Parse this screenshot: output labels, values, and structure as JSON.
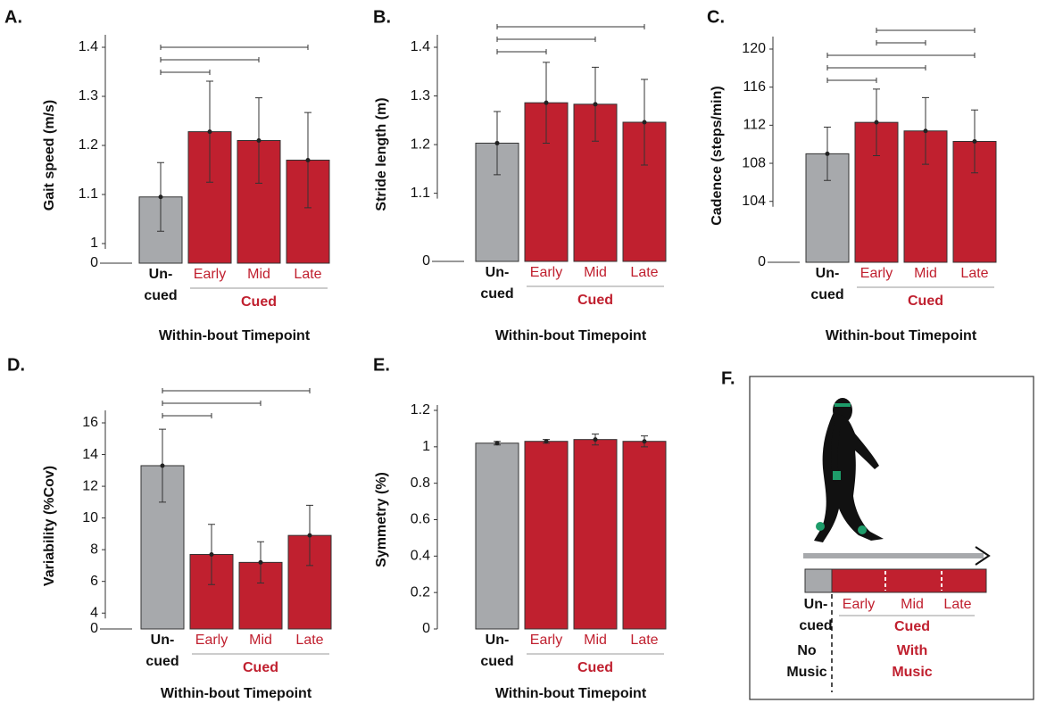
{
  "chart_data": [
    {
      "type": "bar",
      "panel": "A.",
      "ylabel": "Gait speed (m/s)",
      "xlabel": "Within-bout Timepoint",
      "categories": [
        "Un-\ncued",
        "Early",
        "Mid",
        "Late"
      ],
      "group_label": "Cued",
      "values": [
        1.095,
        1.228,
        1.21,
        1.17
      ],
      "errors": [
        0.07,
        0.103,
        0.087,
        0.097
      ],
      "colors": [
        "#a7a9ac",
        "#c0202f",
        "#c0202f",
        "#c0202f"
      ],
      "ylim": [
        0.96,
        1.4
      ],
      "yticks": [
        0,
        1,
        1.1,
        1.2,
        1.3,
        1.4
      ],
      "axis_break": true,
      "significant_pairs": [
        [
          0,
          1
        ],
        [
          0,
          2
        ],
        [
          0,
          3
        ]
      ]
    },
    {
      "type": "bar",
      "panel": "B.",
      "ylabel": "Stride length (m)",
      "xlabel": "Within-bout Timepoint",
      "categories": [
        "Un-\ncued",
        "Early",
        "Mid",
        "Late"
      ],
      "group_label": "Cued",
      "values": [
        1.203,
        1.286,
        1.283,
        1.246
      ],
      "errors": [
        0.065,
        0.083,
        0.076,
        0.088
      ],
      "colors": [
        "#a7a9ac",
        "#c0202f",
        "#c0202f",
        "#c0202f"
      ],
      "ylim": [
        0.96,
        1.4
      ],
      "yticks": [
        0,
        1.1,
        1.2,
        1.3,
        1.4
      ],
      "axis_break": true,
      "significant_pairs": [
        [
          0,
          1
        ],
        [
          0,
          2
        ],
        [
          0,
          3
        ]
      ]
    },
    {
      "type": "bar",
      "panel": "C.",
      "ylabel": "Cadence (steps/min)",
      "xlabel": "Within-bout Timepoint",
      "categories": [
        "Un-\ncued",
        "Early",
        "Mid",
        "Late"
      ],
      "group_label": "Cued",
      "values": [
        109,
        112.3,
        111.4,
        110.3
      ],
      "errors": [
        2.8,
        3.5,
        3.5,
        3.3
      ],
      "colors": [
        "#a7a9ac",
        "#c0202f",
        "#c0202f",
        "#c0202f"
      ],
      "ylim": [
        97.6,
        120
      ],
      "yticks": [
        0,
        104,
        108,
        112,
        116,
        120
      ],
      "axis_break": true,
      "significant_pairs": [
        [
          0,
          1
        ],
        [
          0,
          2
        ],
        [
          0,
          3
        ],
        [
          1,
          2
        ],
        [
          1,
          3
        ]
      ]
    },
    {
      "type": "bar",
      "panel": "D.",
      "ylabel": "Variability (%Cov)",
      "xlabel": "Within-bout Timepoint",
      "categories": [
        "Un-\ncued",
        "Early",
        "Mid",
        "Late"
      ],
      "group_label": "Cued",
      "values": [
        13.3,
        7.7,
        7.2,
        8.9
      ],
      "errors": [
        2.3,
        1.9,
        1.3,
        1.9
      ],
      "colors": [
        "#a7a9ac",
        "#c0202f",
        "#c0202f",
        "#c0202f"
      ],
      "ylim": [
        3,
        16
      ],
      "yticks": [
        0,
        4,
        6,
        8,
        10,
        12,
        14,
        16
      ],
      "axis_break": true,
      "significant_pairs": [
        [
          0,
          1
        ],
        [
          0,
          2
        ],
        [
          0,
          3
        ]
      ]
    },
    {
      "type": "bar",
      "panel": "E.",
      "ylabel": "Symmetry (%)",
      "xlabel": "Within-bout Timepoint",
      "categories": [
        "Un-\ncued",
        "Early",
        "Mid",
        "Late"
      ],
      "group_label": "Cued",
      "values": [
        1.02,
        1.03,
        1.04,
        1.03
      ],
      "errors": [
        0.01,
        0.01,
        0.03,
        0.03
      ],
      "colors": [
        "#a7a9ac",
        "#c0202f",
        "#c0202f",
        "#c0202f"
      ],
      "ylim": [
        0,
        1.2
      ],
      "yticks": [
        0,
        0.2,
        0.4,
        0.6,
        0.8,
        1,
        1.2
      ],
      "axis_break": false,
      "significant_pairs": []
    }
  ],
  "panel_f": {
    "panel": "F.",
    "uncued": "Un-\ncued",
    "phases": [
      "Early",
      "Mid",
      "Late"
    ],
    "group_label": "Cued",
    "no_music": "No\nMusic",
    "with_music": "With\nMusic"
  }
}
